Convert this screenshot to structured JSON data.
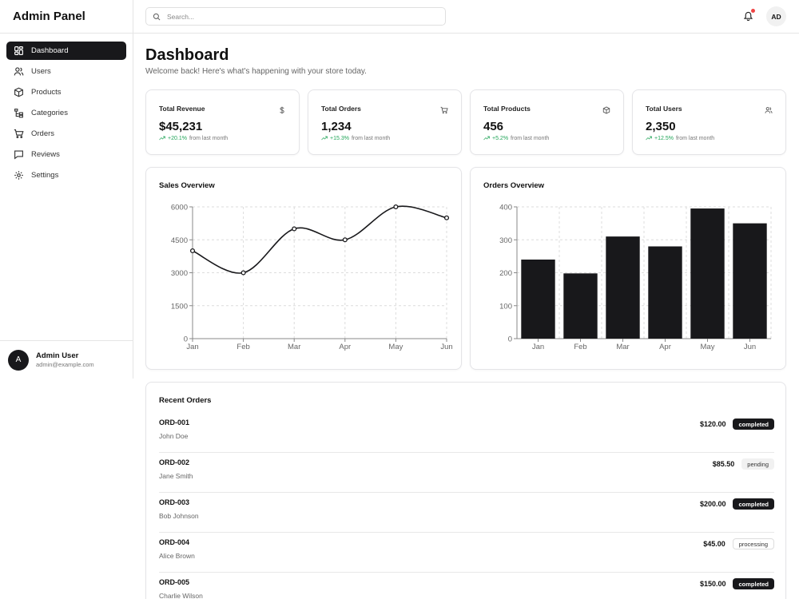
{
  "app": {
    "title": "Admin Panel"
  },
  "sidebar": {
    "items": [
      {
        "label": "Dashboard",
        "icon": "dashboard-icon",
        "active": true
      },
      {
        "label": "Users",
        "icon": "users-icon"
      },
      {
        "label": "Products",
        "icon": "package-icon"
      },
      {
        "label": "Categories",
        "icon": "categories-icon"
      },
      {
        "label": "Orders",
        "icon": "cart-icon"
      },
      {
        "label": "Reviews",
        "icon": "message-icon"
      },
      {
        "label": "Settings",
        "icon": "gear-icon"
      }
    ],
    "user": {
      "initial": "A",
      "name": "Admin User",
      "email": "admin@example.com"
    }
  },
  "topbar": {
    "search_placeholder": "Search...",
    "avatar_initials": "AD",
    "notification_dot_color": "#ef4444"
  },
  "page": {
    "title": "Dashboard",
    "subtitle": "Welcome back! Here's what's happening with your store today."
  },
  "stats": [
    {
      "label": "Total Revenue",
      "value": "$45,231",
      "change": "+20.1%",
      "change_suffix": "from last month",
      "icon": "dollar-icon"
    },
    {
      "label": "Total Orders",
      "value": "1,234",
      "change": "+15.3%",
      "change_suffix": "from last month",
      "icon": "cart-icon"
    },
    {
      "label": "Total Products",
      "value": "456",
      "change": "+5.2%",
      "change_suffix": "from last month",
      "icon": "package-icon"
    },
    {
      "label": "Total Users",
      "value": "2,350",
      "change": "+12.5%",
      "change_suffix": "from last month",
      "icon": "users-icon"
    }
  ],
  "chart_data": [
    {
      "type": "line",
      "title": "Sales Overview",
      "categories": [
        "Jan",
        "Feb",
        "Mar",
        "Apr",
        "May",
        "Jun"
      ],
      "values": [
        4000,
        3000,
        5000,
        4500,
        6000,
        5500
      ],
      "ylim": [
        0,
        6000
      ],
      "yticks": [
        "0",
        "1500",
        "3000",
        "4500",
        "6000"
      ],
      "grid": true,
      "color": "#18181b"
    },
    {
      "type": "bar",
      "title": "Orders Overview",
      "categories": [
        "Jan",
        "Feb",
        "Mar",
        "Apr",
        "May",
        "Jun"
      ],
      "values": [
        240,
        198,
        310,
        280,
        395,
        350
      ],
      "ylim": [
        0,
        400
      ],
      "yticks": [
        "0",
        "100",
        "200",
        "300",
        "400"
      ],
      "grid": true,
      "color": "#18181b"
    }
  ],
  "recent_orders": {
    "title": "Recent Orders",
    "rows": [
      {
        "id": "ORD-001",
        "customer": "John Doe",
        "amount": "$120.00",
        "status": "completed"
      },
      {
        "id": "ORD-002",
        "customer": "Jane Smith",
        "amount": "$85.50",
        "status": "pending"
      },
      {
        "id": "ORD-003",
        "customer": "Bob Johnson",
        "amount": "$200.00",
        "status": "completed"
      },
      {
        "id": "ORD-004",
        "customer": "Alice Brown",
        "amount": "$45.00",
        "status": "processing"
      },
      {
        "id": "ORD-005",
        "customer": "Charlie Wilson",
        "amount": "$150.00",
        "status": "completed"
      }
    ]
  },
  "colors": {
    "accent": "#18181b",
    "positive": "#22a559",
    "border": "#e4e4e7"
  }
}
